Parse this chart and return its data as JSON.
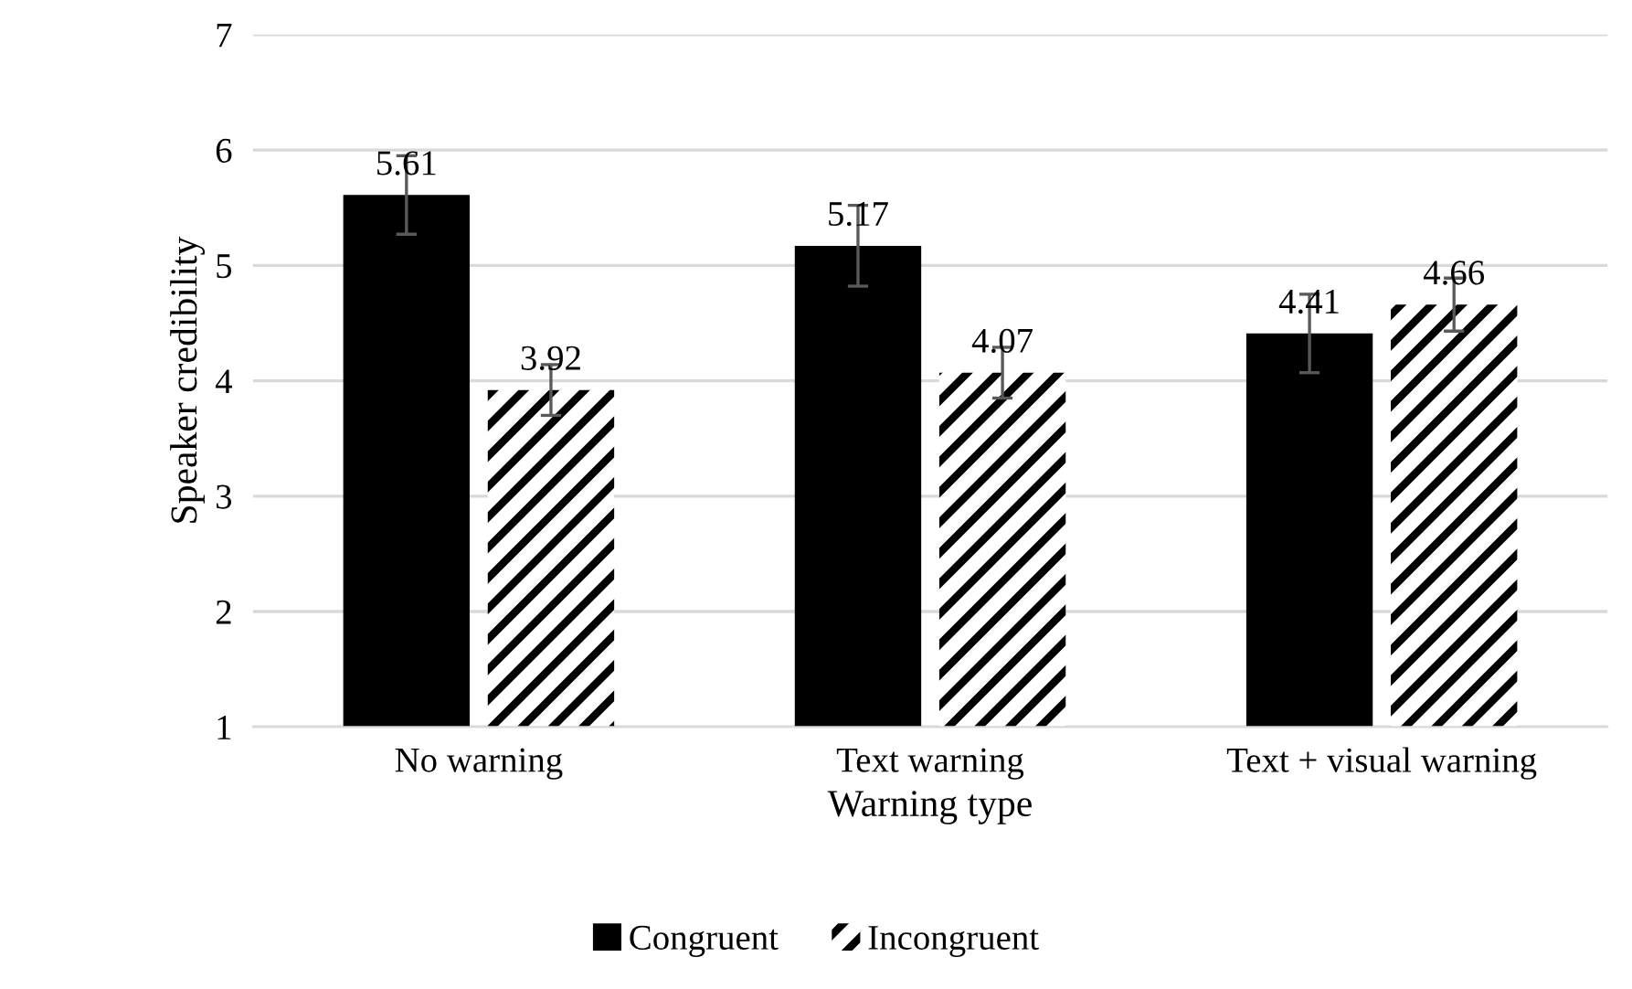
{
  "chart_data": {
    "type": "bar",
    "xlabel": "Warning type",
    "ylabel": "Speaker credibility",
    "categories": [
      "No warning",
      "Text warning",
      "Text + visual warning"
    ],
    "series": [
      {
        "name": "Congruent",
        "color": "#000000",
        "values": [
          5.61,
          5.17,
          4.41
        ],
        "errors": [
          0.34,
          0.35,
          0.34
        ]
      },
      {
        "name": "Incongruent",
        "color": "#000000",
        "values": [
          3.92,
          4.07,
          4.66
        ],
        "errors": [
          0.22,
          0.22,
          0.23
        ]
      }
    ],
    "ylim": [
      1,
      7
    ],
    "yticks": [
      1,
      2,
      3,
      4,
      5,
      6,
      7
    ],
    "grid": "y",
    "legend": "bottom",
    "data_labels": true
  }
}
